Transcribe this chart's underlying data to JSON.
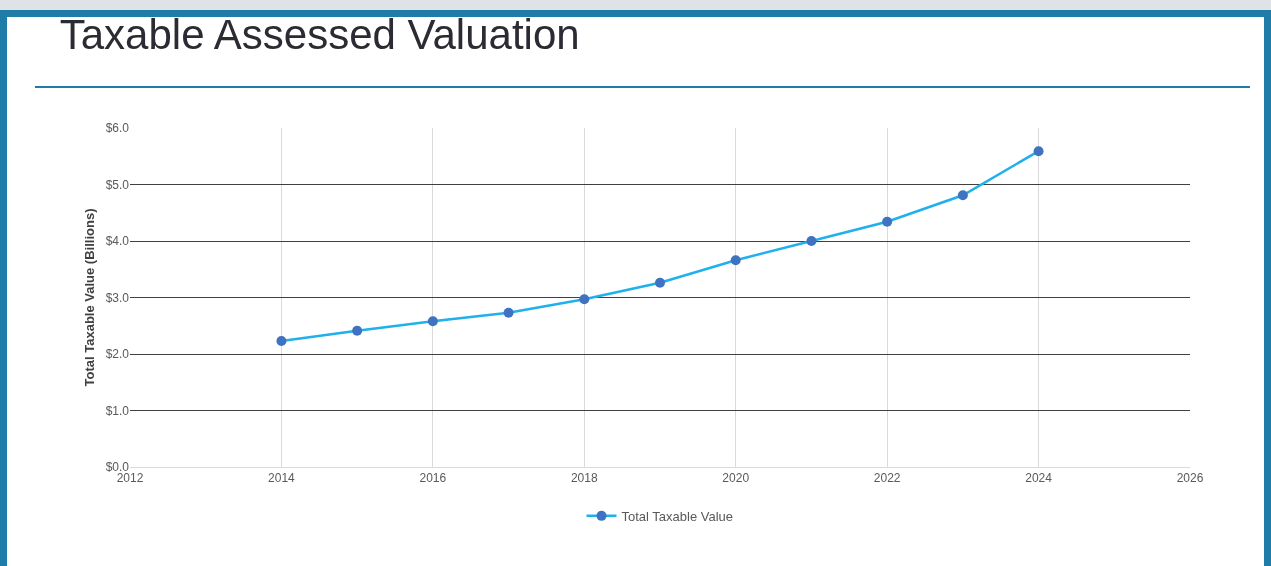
{
  "chart_data": {
    "type": "line",
    "title": "Taxable Assessed Valuation",
    "ylabel": "Total Taxable Value (Billions)",
    "x": [
      2014,
      2015,
      2016,
      2017,
      2018,
      2019,
      2020,
      2021,
      2022,
      2023,
      2024
    ],
    "series": [
      {
        "name": "Total Taxable Value",
        "color": "#1fb0ee",
        "values": [
          2.23,
          2.41,
          2.58,
          2.73,
          2.97,
          3.26,
          3.66,
          4.0,
          4.34,
          4.81,
          5.59
        ]
      }
    ],
    "xlim": [
      2012,
      2026
    ],
    "xticks": [
      2012,
      2014,
      2016,
      2018,
      2020,
      2022,
      2024,
      2026
    ],
    "ylim": [
      0,
      6
    ],
    "yticks": [
      {
        "value": 0,
        "label": "$0.0"
      },
      {
        "value": 1,
        "label": "$1.0"
      },
      {
        "value": 2,
        "label": "$2.0"
      },
      {
        "value": 3,
        "label": "$3.0"
      },
      {
        "value": 4,
        "label": "$4.0"
      },
      {
        "value": 5,
        "label": "$5.0"
      },
      {
        "value": 6,
        "label": "$6.0"
      }
    ],
    "grid": true,
    "legend": "bottom",
    "marker": "circle",
    "line_style": "solid"
  }
}
